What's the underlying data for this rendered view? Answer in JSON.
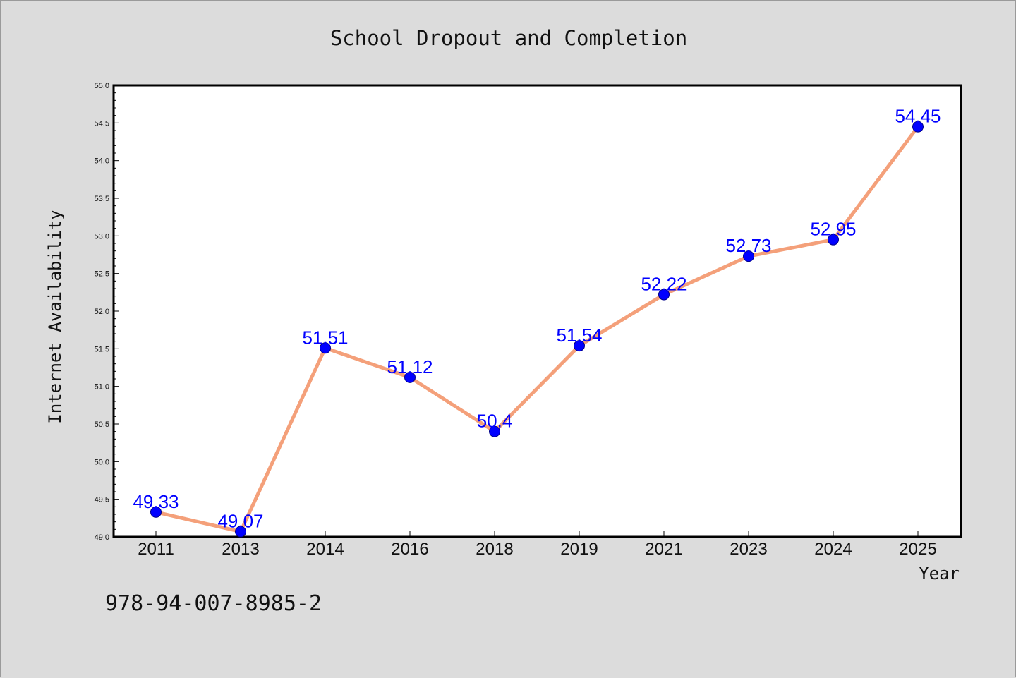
{
  "chart_data": {
    "type": "line",
    "title": "School Dropout and Completion",
    "xlabel": "Year",
    "ylabel": "Internet Availability",
    "categories": [
      "2011",
      "2013",
      "2014",
      "2016",
      "2018",
      "2019",
      "2021",
      "2023",
      "2024",
      "2025"
    ],
    "series": [
      {
        "values": [
          49.33,
          49.07,
          51.51,
          51.12,
          50.4,
          51.54,
          52.22,
          52.73,
          52.95,
          54.45
        ],
        "labels": [
          "49.33",
          "49.07",
          "51.51",
          "51.12",
          "50.4",
          "51.54",
          "52.22",
          "52.73",
          "52.95",
          "54.45"
        ],
        "line_color": "#f4a07a",
        "marker_color": "#0000ff"
      }
    ],
    "ylim": [
      49.0,
      55.0
    ],
    "yticks": [
      "49.0",
      "49.5",
      "50.0",
      "50.5",
      "51.0",
      "51.5",
      "52.0",
      "52.5",
      "53.0",
      "53.5",
      "54.0",
      "54.5",
      "55.0"
    ],
    "grid": false,
    "legend": "none"
  },
  "footer": {
    "code": "978-94-007-8985-2"
  }
}
